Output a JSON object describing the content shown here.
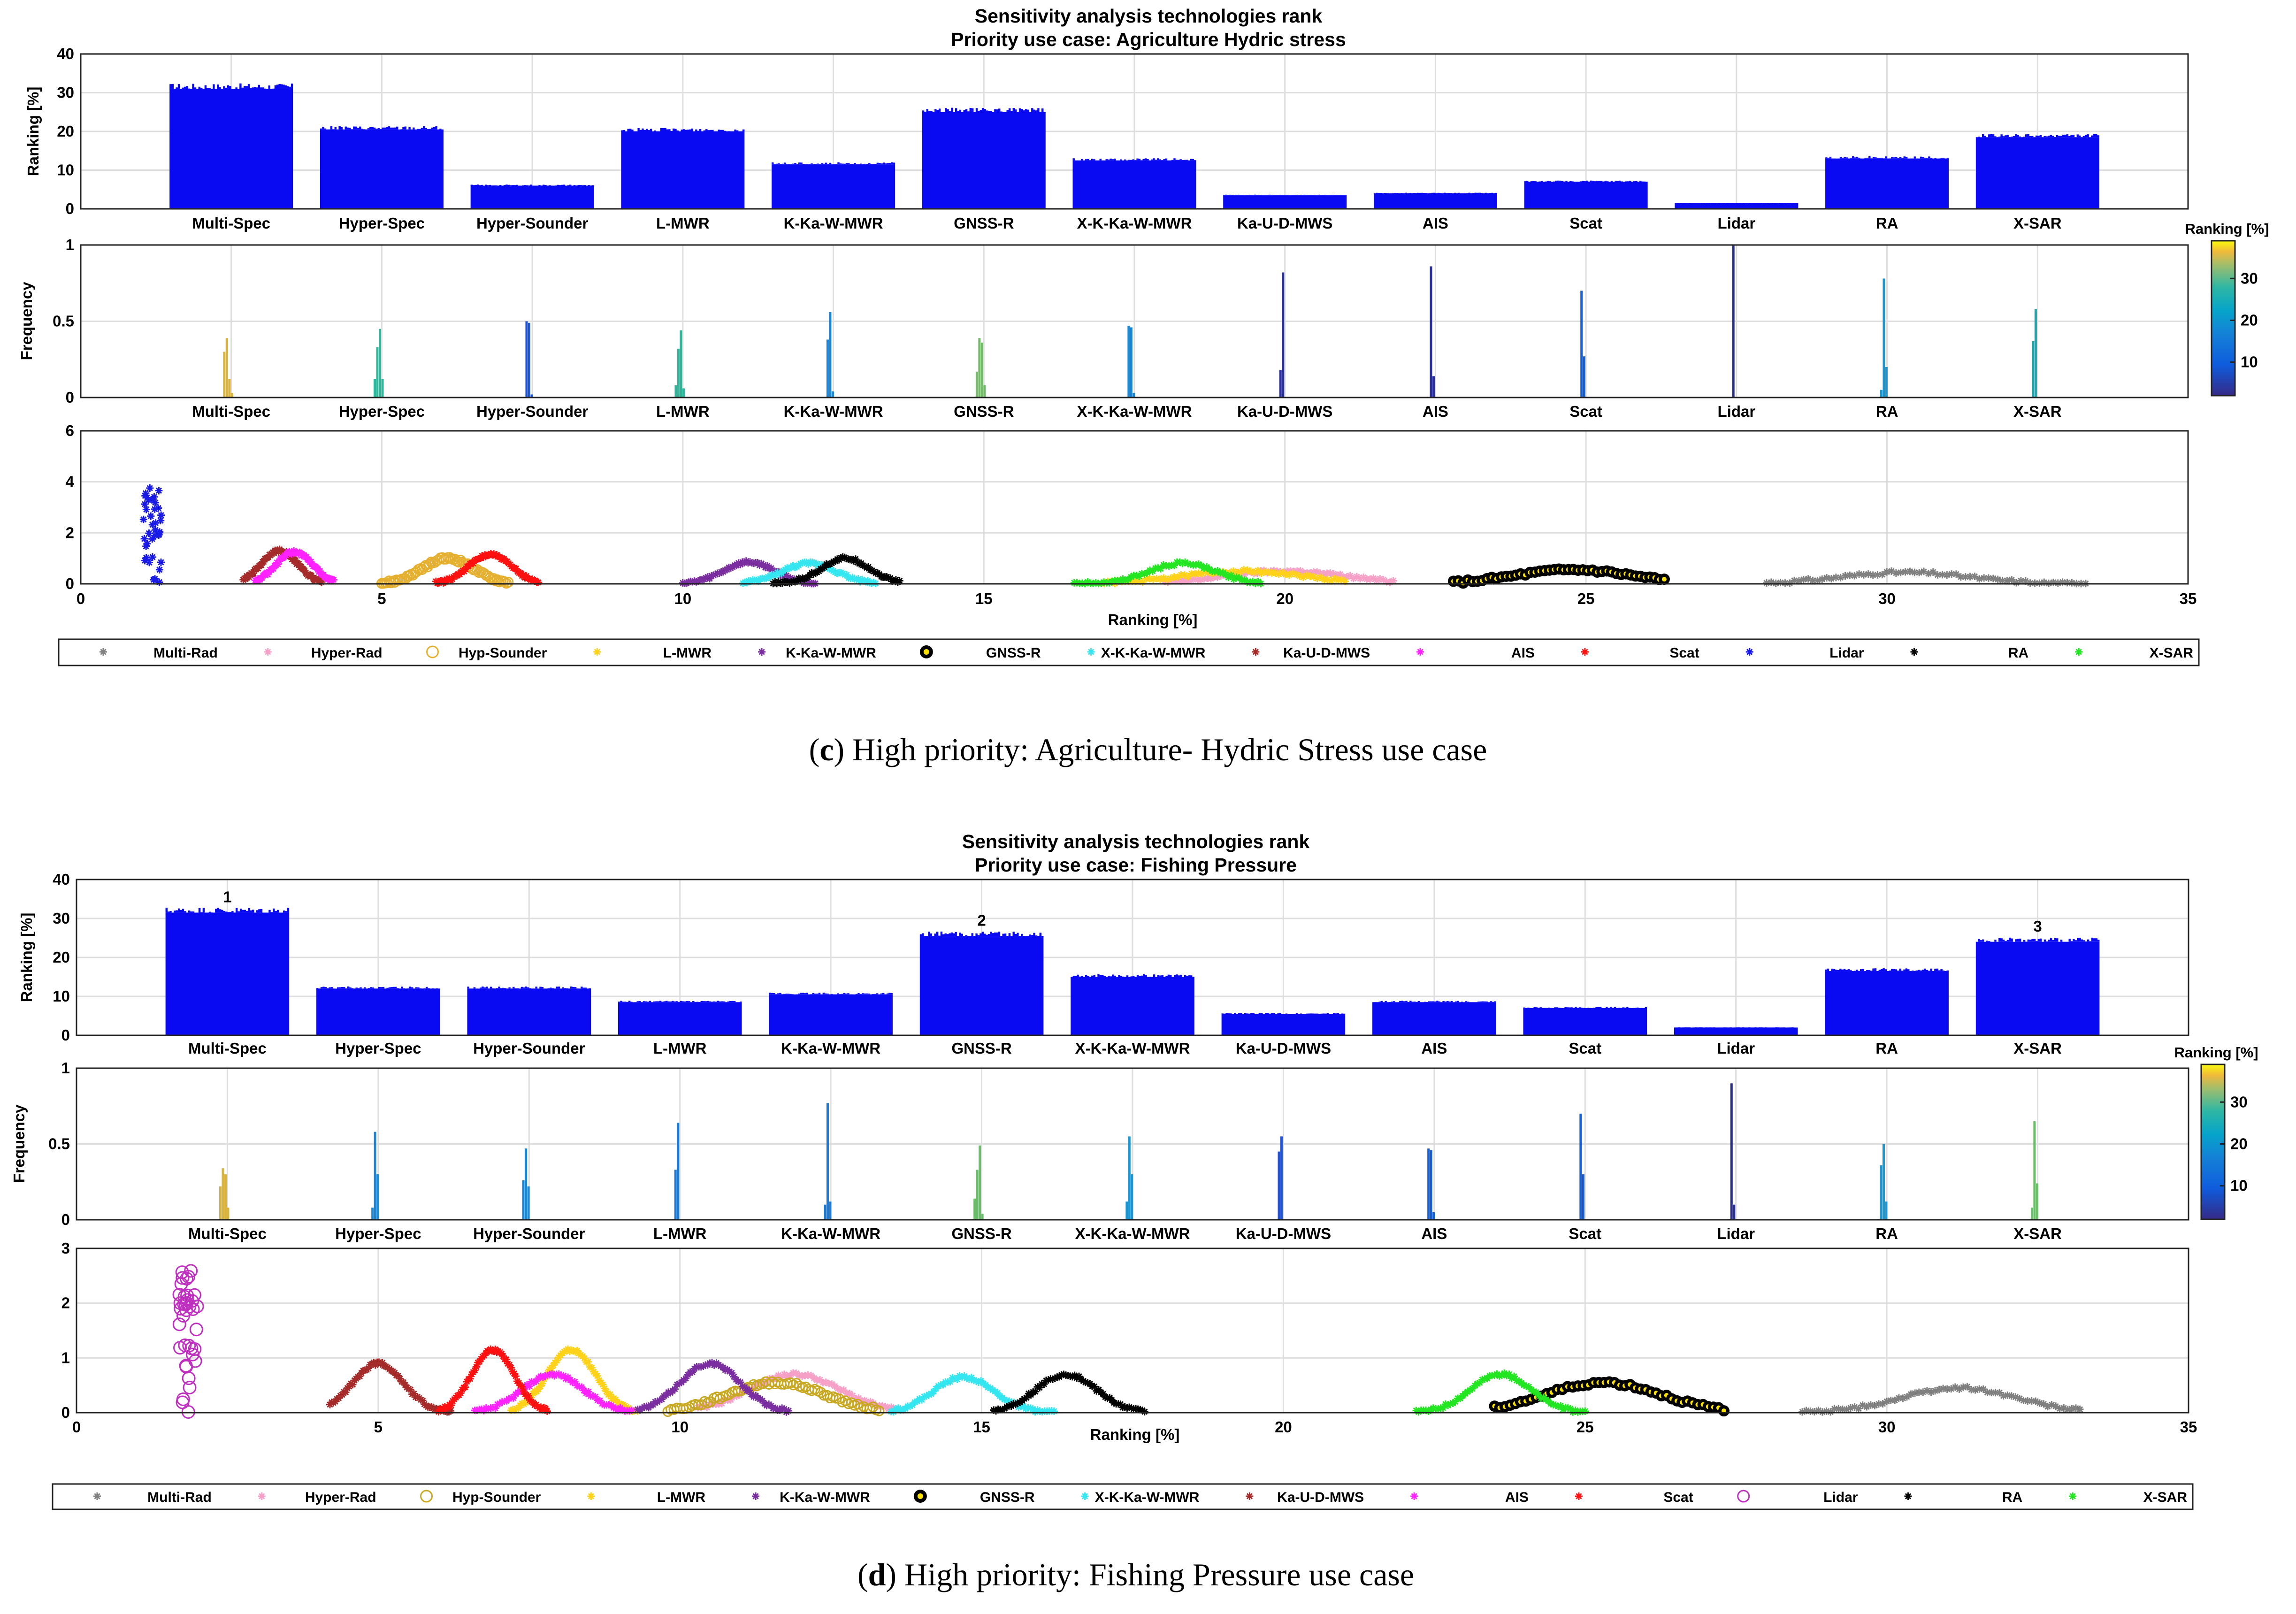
{
  "chart_data": [
    {
      "type": "composite",
      "panel_label": "c",
      "caption_text": "High priority: Agriculture- Hydric Stress use case",
      "title": "Sensitivity analysis technologies rank",
      "subtitle": "Priority use case: Agriculture Hydric stress",
      "bar_panel": {
        "type": "bar",
        "ylabel": "Ranking [%]",
        "ylim": [
          0,
          40
        ],
        "yticks": [
          "0",
          "10",
          "20",
          "30",
          "40"
        ],
        "categories": [
          "Multi-Spec",
          "Hyper-Spec",
          "Hyper-Sounder",
          "L-MWR",
          "K-Ka-W-MWR",
          "GNSS-R",
          "X-K-Ka-W-MWR",
          "Ka-U-D-MWS",
          "AIS",
          "Scat",
          "Lidar",
          "RA",
          "X-SAR"
        ],
        "values": [
          31,
          20.5,
          6,
          20,
          11.5,
          25,
          12.5,
          3.5,
          4,
          7,
          1.5,
          13,
          18.5
        ],
        "rank_labels": []
      },
      "freq_panel": {
        "type": "bar",
        "ylabel": "Frequency",
        "ylim": [
          0,
          1
        ],
        "yticks": [
          "0",
          "0.5",
          "1"
        ],
        "categories": [
          "Multi-Spec",
          "Hyper-Spec",
          "Hyper-Sounder",
          "L-MWR",
          "K-Ka-W-MWR",
          "GNSS-R",
          "X-K-Ka-W-MWR",
          "Ka-U-D-MWS",
          "AIS",
          "Scat",
          "Lidar",
          "RA",
          "X-SAR"
        ],
        "peaks": [
          {
            "bars": [
              0.3,
              0.39,
              0.12,
              0.03
            ],
            "color": "#d8b33e"
          },
          {
            "bars": [
              0.12,
              0.33,
              0.45,
              0.12
            ],
            "color": "#2fb79b"
          },
          {
            "bars": [
              0.5,
              0.49,
              0.02
            ],
            "color": "#1a53d6"
          },
          {
            "bars": [
              0.08,
              0.32,
              0.44,
              0.06
            ],
            "color": "#2fb79b"
          },
          {
            "bars": [
              0.38,
              0.56,
              0.04
            ],
            "color": "#1b86d6"
          },
          {
            "bars": [
              0.17,
              0.39,
              0.36,
              0.08
            ],
            "color": "#74ba6a"
          },
          {
            "bars": [
              0.47,
              0.46,
              0.03
            ],
            "color": "#1b86d6"
          },
          {
            "bars": [
              0.18,
              0.82
            ],
            "color": "#2a2f9e"
          },
          {
            "bars": [
              0.86,
              0.14
            ],
            "color": "#2a2f9e"
          },
          {
            "bars": [
              0.7,
              0.27
            ],
            "color": "#1560d9"
          },
          {
            "bars": [
              1.0
            ],
            "color": "#2a2f8a"
          },
          {
            "bars": [
              0.05,
              0.78,
              0.2
            ],
            "color": "#1b97d2"
          },
          {
            "bars": [
              0.37,
              0.58
            ],
            "color": "#18a5b0"
          }
        ],
        "colorbar": {
          "label": "Ranking [%]",
          "ticks": [
            "10",
            "20",
            "30"
          ],
          "range": [
            2,
            39
          ]
        }
      },
      "dist_panel": {
        "type": "scatter",
        "xlabel": "Ranking [%]",
        "xlim": [
          0,
          35
        ],
        "ylim": [
          0,
          6
        ],
        "xticks": [
          "0",
          "5",
          "10",
          "15",
          "20",
          "25",
          "30",
          "35"
        ],
        "yticks": [
          "0",
          "2",
          "4",
          "6"
        ],
        "series": [
          {
            "name": "Multi-Rad",
            "color": "#808080",
            "marker": "star",
            "center": 30.3,
            "sigma": 1.05,
            "peak": 0.45,
            "lo": 28.0,
            "hi": 33.3
          },
          {
            "name": "Hyper-Rad",
            "color": "#f6a0c8",
            "marker": "star",
            "center": 20.0,
            "sigma": 1.0,
            "peak": 0.5,
            "lo": 18.0,
            "hi": 21.8
          },
          {
            "name": "Hyp-Sounder",
            "color": "#e5b030",
            "marker": "circle",
            "center": 6.1,
            "sigma": 0.42,
            "peak": 1.0,
            "lo": 5.0,
            "hi": 7.1
          },
          {
            "name": "L-MWR",
            "color": "#ffd21a",
            "marker": "star",
            "center": 19.3,
            "sigma": 1.0,
            "peak": 0.5,
            "lo": 17.0,
            "hi": 21.0
          },
          {
            "name": "K-Ka-W-MWR",
            "color": "#7a2ea0",
            "marker": "star",
            "center": 11.1,
            "sigma": 0.42,
            "peak": 0.85,
            "lo": 10.0,
            "hi": 12.2
          },
          {
            "name": "GNSS-R",
            "color": "#000000",
            "marker": "gnss",
            "center": 24.8,
            "sigma": 0.95,
            "peak": 0.55,
            "lo": 22.8,
            "hi": 26.3
          },
          {
            "name": "X-K-Ka-W-MWR",
            "color": "#33e6f0",
            "marker": "star",
            "center": 12.1,
            "sigma": 0.45,
            "peak": 0.8,
            "lo": 11.0,
            "hi": 13.2
          },
          {
            "name": "Ka-U-D-MWS",
            "color": "#a52a2a",
            "marker": "star",
            "center": 3.3,
            "sigma": 0.3,
            "peak": 1.3,
            "lo": 2.7,
            "hi": 4.0
          },
          {
            "name": "AIS",
            "color": "#ff22ff",
            "marker": "star",
            "center": 3.55,
            "sigma": 0.3,
            "peak": 1.25,
            "lo": 2.9,
            "hi": 4.2
          },
          {
            "name": "Scat",
            "color": "#ff1010",
            "marker": "star",
            "center": 6.8,
            "sigma": 0.35,
            "peak": 1.15,
            "lo": 5.9,
            "hi": 7.6
          },
          {
            "name": "Lidar",
            "color": "#1a1ae6",
            "marker": "star",
            "center": 1.2,
            "sigma": 0.09,
            "peak": 4.1,
            "lo": 0.9,
            "hi": 1.4
          },
          {
            "name": "RA",
            "color": "#000000",
            "marker": "star",
            "center": 12.7,
            "sigma": 0.4,
            "peak": 1.0,
            "lo": 11.5,
            "hi": 13.6
          },
          {
            "name": "X-SAR",
            "color": "#22e622",
            "marker": "star",
            "center": 18.3,
            "sigma": 0.55,
            "peak": 0.8,
            "lo": 16.5,
            "hi": 19.6
          }
        ]
      }
    },
    {
      "type": "composite",
      "panel_label": "d",
      "caption_text": "High priority: Fishing Pressure use case",
      "title": "Sensitivity analysis technologies rank",
      "subtitle": "Priority use case: Fishing Pressure",
      "bar_panel": {
        "type": "bar",
        "ylabel": "Ranking [%]",
        "ylim": [
          0,
          40
        ],
        "yticks": [
          "0",
          "10",
          "20",
          "30",
          "40"
        ],
        "categories": [
          "Multi-Spec",
          "Hyper-Spec",
          "Hyper-Sounder",
          "L-MWR",
          "K-Ka-W-MWR",
          "GNSS-R",
          "X-K-Ka-W-MWR",
          "Ka-U-D-MWS",
          "AIS",
          "Scat",
          "Lidar",
          "RA",
          "X-SAR"
        ],
        "values": [
          31.5,
          12,
          12,
          8.5,
          10.5,
          25.5,
          15,
          5.5,
          8.5,
          7,
          2,
          16.5,
          24
        ],
        "rank_labels": [
          {
            "category": "Multi-Spec",
            "text": "1"
          },
          {
            "category": "GNSS-R",
            "text": "2"
          },
          {
            "category": "X-SAR",
            "text": "3"
          }
        ]
      },
      "freq_panel": {
        "type": "bar",
        "ylabel": "Frequency",
        "ylim": [
          0,
          1
        ],
        "yticks": [
          "0",
          "0.5",
          "1"
        ],
        "categories": [
          "Multi-Spec",
          "Hyper-Spec",
          "Hyper-Sounder",
          "L-MWR",
          "K-Ka-W-MWR",
          "GNSS-R",
          "X-K-Ka-W-MWR",
          "Ka-U-D-MWS",
          "AIS",
          "Scat",
          "Lidar",
          "RA",
          "X-SAR"
        ],
        "peaks": [
          {
            "bars": [
              0.22,
              0.34,
              0.3,
              0.08
            ],
            "color": "#d8b33e"
          },
          {
            "bars": [
              0.08,
              0.58,
              0.3
            ],
            "color": "#1b86d6"
          },
          {
            "bars": [
              0.26,
              0.47,
              0.22
            ],
            "color": "#1b86d6"
          },
          {
            "bars": [
              0.33,
              0.64
            ],
            "color": "#1b7ad6"
          },
          {
            "bars": [
              0.1,
              0.77,
              0.12
            ],
            "color": "#1b7ad6"
          },
          {
            "bars": [
              0.14,
              0.33,
              0.49,
              0.04
            ],
            "color": "#6cbf6a"
          },
          {
            "bars": [
              0.12,
              0.55,
              0.3
            ],
            "color": "#1b97d6"
          },
          {
            "bars": [
              0.45,
              0.55
            ],
            "color": "#2353d6"
          },
          {
            "bars": [
              0.47,
              0.46,
              0.05
            ],
            "color": "#1560d9"
          },
          {
            "bars": [
              0.7,
              0.3
            ],
            "color": "#1560d9"
          },
          {
            "bars": [
              0.9,
              0.1
            ],
            "color": "#2a2f8a"
          },
          {
            "bars": [
              0.36,
              0.5,
              0.12
            ],
            "color": "#1b97d2"
          },
          {
            "bars": [
              0.08,
              0.65,
              0.24
            ],
            "color": "#6cbf6a"
          }
        ],
        "colorbar": {
          "label": "Ranking [%]",
          "ticks": [
            "10",
            "20",
            "30"
          ],
          "range": [
            2,
            39
          ]
        }
      },
      "dist_panel": {
        "type": "scatter",
        "xlabel": "Ranking [%]",
        "xlim": [
          0,
          35
        ],
        "ylim": [
          0,
          3
        ],
        "xticks": [
          "0",
          "5",
          "10",
          "15",
          "20",
          "25",
          "30",
          "35"
        ],
        "yticks": [
          "0",
          "1",
          "2",
          "3"
        ],
        "series": [
          {
            "name": "Multi-Rad",
            "color": "#808080",
            "marker": "star",
            "center": 31.2,
            "sigma": 0.95,
            "peak": 0.45,
            "lo": 28.6,
            "hi": 33.2
          },
          {
            "name": "Hyper-Rad",
            "color": "#f6a0c8",
            "marker": "star",
            "center": 11.9,
            "sigma": 0.75,
            "peak": 0.7,
            "lo": 10.3,
            "hi": 13.7
          },
          {
            "name": "Hyp-Sounder",
            "color": "#c8a820",
            "marker": "circle",
            "center": 11.6,
            "sigma": 0.8,
            "peak": 0.55,
            "lo": 9.8,
            "hi": 13.3
          },
          {
            "name": "L-MWR",
            "color": "#ffd21a",
            "marker": "star",
            "center": 8.2,
            "sigma": 0.4,
            "peak": 1.15,
            "lo": 7.2,
            "hi": 9.3
          },
          {
            "name": "K-Ka-W-MWR",
            "color": "#7a2ea0",
            "marker": "star",
            "center": 10.5,
            "sigma": 0.5,
            "peak": 0.9,
            "lo": 9.3,
            "hi": 11.8
          },
          {
            "name": "GNSS-R",
            "color": "#000000",
            "marker": "gnss",
            "center": 25.3,
            "sigma": 0.95,
            "peak": 0.55,
            "lo": 23.5,
            "hi": 27.3
          },
          {
            "name": "X-K-Ka-W-MWR",
            "color": "#33e6f0",
            "marker": "star",
            "center": 14.7,
            "sigma": 0.5,
            "peak": 0.65,
            "lo": 13.5,
            "hi": 16.2
          },
          {
            "name": "Ka-U-D-MWS",
            "color": "#a52a2a",
            "marker": "star",
            "center": 5.0,
            "sigma": 0.42,
            "peak": 0.9,
            "lo": 4.2,
            "hi": 6.2
          },
          {
            "name": "AIS",
            "color": "#ff22ff",
            "marker": "star",
            "center": 7.9,
            "sigma": 0.5,
            "peak": 0.7,
            "lo": 6.6,
            "hi": 9.2
          },
          {
            "name": "Scat",
            "color": "#ff1010",
            "marker": "star",
            "center": 6.9,
            "sigma": 0.35,
            "peak": 1.15,
            "lo": 6.0,
            "hi": 7.8
          },
          {
            "name": "Lidar",
            "color": "#c030c0",
            "marker": "ring",
            "center": 1.85,
            "sigma": 0.12,
            "peak": 2.65,
            "lo": 1.5,
            "hi": 2.2
          },
          {
            "name": "RA",
            "color": "#000000",
            "marker": "star",
            "center": 16.4,
            "sigma": 0.5,
            "peak": 0.7,
            "lo": 15.2,
            "hi": 17.7
          },
          {
            "name": "X-SAR",
            "color": "#22e622",
            "marker": "star",
            "center": 23.6,
            "sigma": 0.5,
            "peak": 0.7,
            "lo": 22.2,
            "hi": 25.0
          }
        ]
      }
    }
  ]
}
